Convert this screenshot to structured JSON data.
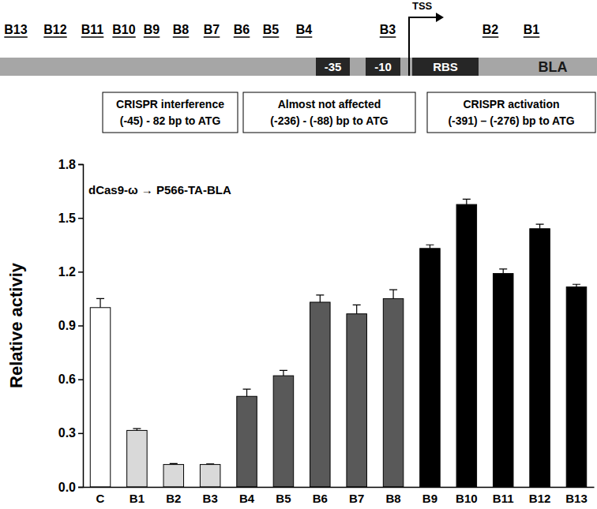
{
  "chart_data": {
    "type": "bar",
    "schematic": {
      "sites": [
        "B13",
        "B12",
        "B11",
        "B10",
        "B9",
        "B8",
        "B7",
        "B6",
        "B5",
        "B4",
        "B3",
        "B2",
        "B1"
      ],
      "elements": [
        "-35",
        "-10",
        "RBS",
        "BLA"
      ],
      "tss": "TSS"
    },
    "annotations": [
      {
        "lines": [
          "CRISPR interference",
          "(-45) - 82 bp to ATG"
        ]
      },
      {
        "lines": [
          "Almost not affected",
          "(-236) - (-88) bp to ATG"
        ]
      },
      {
        "lines": [
          "CRISPR activation",
          "(-391) – (-276) bp to ATG"
        ]
      }
    ],
    "title": "dCas9-ω → P566-TA-BLA",
    "y_label": "Relative activiy",
    "categories": [
      "C",
      "B1",
      "B2",
      "B3",
      "B4",
      "B5",
      "B6",
      "B7",
      "B8",
      "B9",
      "B10",
      "B11",
      "B12",
      "B13"
    ],
    "values": [
      1.0,
      0.315,
      0.125,
      0.125,
      0.505,
      0.62,
      1.03,
      0.965,
      1.05,
      1.33,
      1.575,
      1.19,
      1.44,
      1.115
    ],
    "errors": [
      0.05,
      0.01,
      0.005,
      0.003,
      0.04,
      0.03,
      0.04,
      0.05,
      0.05,
      0.02,
      0.03,
      0.025,
      0.025,
      0.015
    ],
    "colors": [
      "#ffffff",
      "#d9d9d9",
      "#d9d9d9",
      "#d9d9d9",
      "#595959",
      "#595959",
      "#595959",
      "#595959",
      "#595959",
      "#000000",
      "#000000",
      "#000000",
      "#000000",
      "#000000"
    ],
    "ylim": [
      0,
      1.8
    ],
    "yticks": [
      {
        "value": 0,
        "label": "0.0"
      },
      0.3,
      0.6,
      0.9,
      1.2,
      1.5,
      1.8
    ],
    "grid": false
  }
}
